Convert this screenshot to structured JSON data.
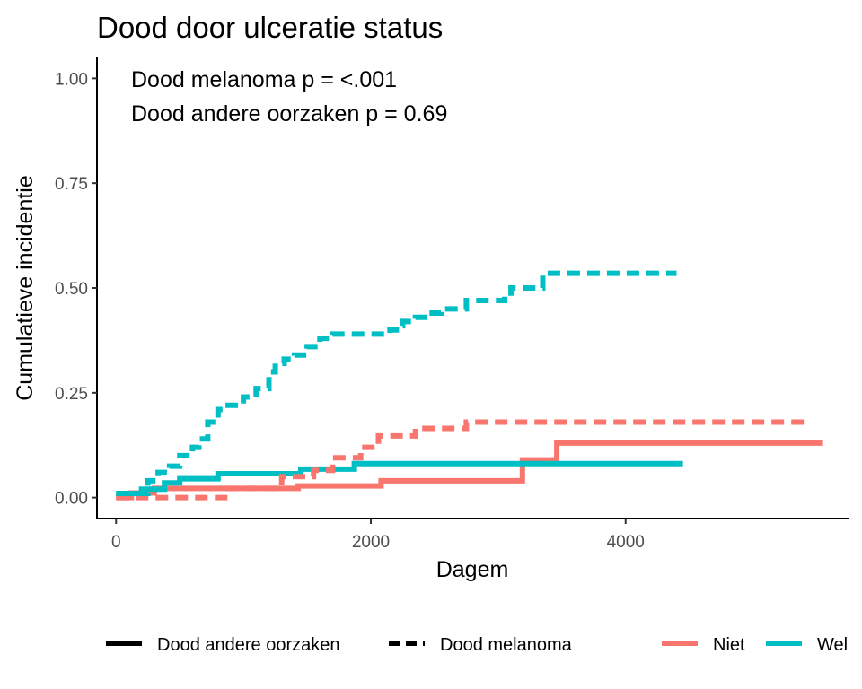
{
  "chart_data": {
    "type": "line",
    "subtype": "step",
    "title": "Dood door ulceratie status",
    "xlabel": "Dagem",
    "ylabel": "Cumulatieve incidentie",
    "xlim": [
      -150,
      5750
    ],
    "ylim": [
      -0.05,
      1.05
    ],
    "xticks": [
      0,
      2000,
      4000
    ],
    "yticks": [
      0.0,
      0.25,
      0.5,
      0.75,
      1.0
    ],
    "ytick_labels": [
      "0.00",
      "0.25",
      "0.50",
      "0.75",
      "1.00"
    ],
    "xtick_labels": [
      "0",
      "2000",
      "4000"
    ],
    "grid": false,
    "legend_position": "bottom",
    "annotations": [
      "Dood melanoma p = <.001",
      "Dood andere oorzaken p = 0.69"
    ],
    "legend": {
      "linetype": [
        {
          "label": "Dood andere oorzaken",
          "dash": "solid"
        },
        {
          "label": "Dood melanoma",
          "dash": "dashed"
        }
      ],
      "color": [
        {
          "label": "Niet",
          "color": "#F8766D"
        },
        {
          "label": "Wel",
          "color": "#00BFC4"
        }
      ]
    },
    "series": [
      {
        "name": "Niet, Dood andere oorzaken",
        "color": "#F8766D",
        "dash": "solid",
        "x": [
          0,
          120,
          300,
          800,
          1430,
          2080,
          3160,
          3190,
          3460,
          5550
        ],
        "y": [
          0.0,
          0.011,
          0.022,
          0.022,
          0.028,
          0.04,
          0.04,
          0.09,
          0.13,
          0.13
        ]
      },
      {
        "name": "Wel, Dood andere oorzaken",
        "color": "#00BFC4",
        "dash": "solid",
        "x": [
          0,
          200,
          380,
          500,
          800,
          1450,
          1870,
          4450
        ],
        "y": [
          0.01,
          0.02,
          0.035,
          0.045,
          0.057,
          0.068,
          0.081,
          0.081
        ]
      },
      {
        "name": "Niet, Dood melanoma",
        "color": "#F8766D",
        "dash": "dashed",
        "x": [
          0,
          800,
          880,
          1300,
          1550,
          1700,
          1920,
          2060,
          2350,
          2750,
          5450
        ],
        "y": [
          0.0,
          0.0,
          0.022,
          0.05,
          0.065,
          0.095,
          0.12,
          0.147,
          0.165,
          0.18,
          0.18
        ]
      },
      {
        "name": "Wel, Dood melanoma",
        "color": "#00BFC4",
        "dash": "dashed",
        "x": [
          0,
          250,
          330,
          420,
          500,
          600,
          650,
          720,
          800,
          880,
          1000,
          1100,
          1200,
          1250,
          1320,
          1400,
          1500,
          1600,
          1700,
          1820,
          2100,
          2150,
          2200,
          2250,
          2350,
          2450,
          2550,
          2750,
          3050,
          3100,
          3350,
          4400
        ],
        "y": [
          0.01,
          0.04,
          0.06,
          0.075,
          0.1,
          0.12,
          0.14,
          0.18,
          0.21,
          0.22,
          0.24,
          0.26,
          0.3,
          0.32,
          0.33,
          0.34,
          0.36,
          0.38,
          0.39,
          0.39,
          0.39,
          0.4,
          0.41,
          0.42,
          0.43,
          0.44,
          0.45,
          0.47,
          0.48,
          0.5,
          0.535,
          0.535
        ]
      }
    ]
  }
}
